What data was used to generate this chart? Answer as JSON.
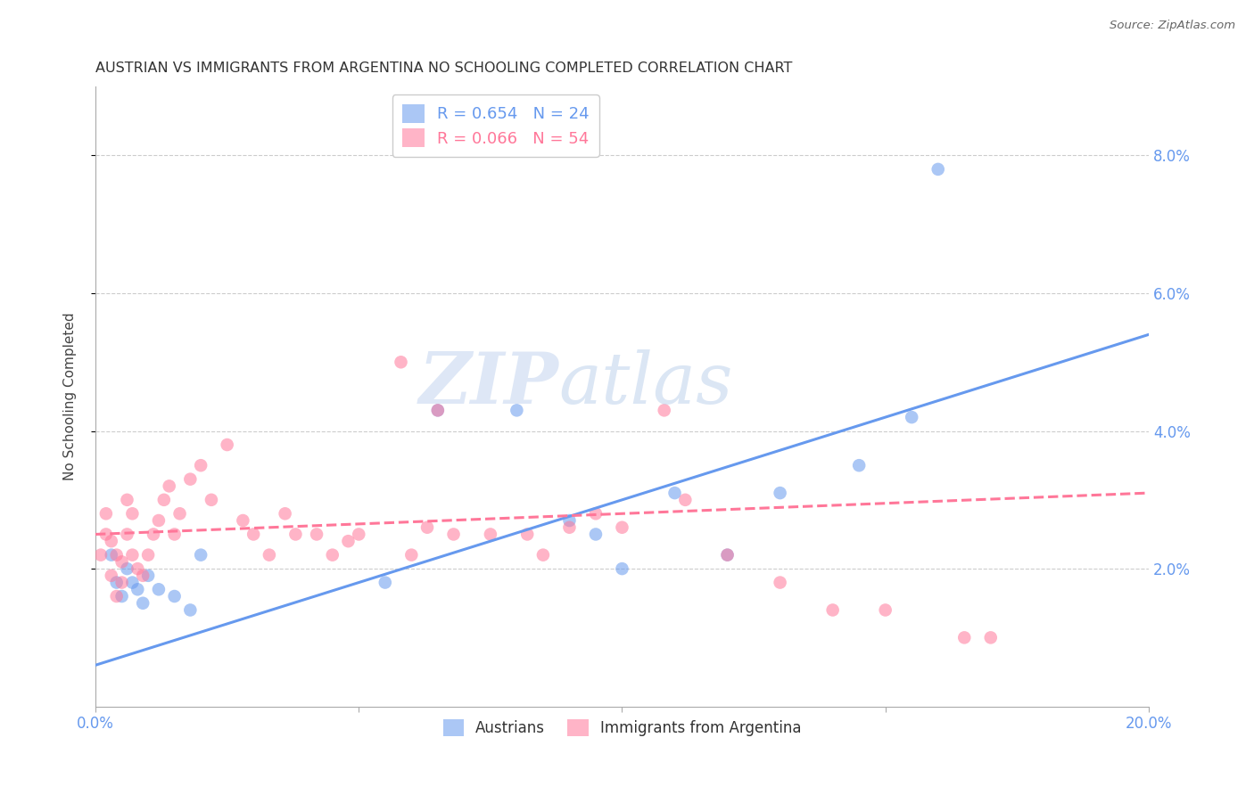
{
  "title": "AUSTRIAN VS IMMIGRANTS FROM ARGENTINA NO SCHOOLING COMPLETED CORRELATION CHART",
  "source": "Source: ZipAtlas.com",
  "ylabel": "No Schooling Completed",
  "xlim": [
    0.0,
    0.2
  ],
  "ylim": [
    0.0,
    0.09
  ],
  "xticks": [
    0.0,
    0.05,
    0.1,
    0.15,
    0.2
  ],
  "yticks": [
    0.02,
    0.04,
    0.06,
    0.08
  ],
  "xtick_labels": [
    "0.0%",
    "",
    "",
    "",
    "20.0%"
  ],
  "ytick_labels": [
    "2.0%",
    "4.0%",
    "6.0%",
    "8.0%"
  ],
  "austrians_color": "#6699ee",
  "immigrants_color": "#ff7799",
  "austrians_R": 0.654,
  "austrians_N": 24,
  "immigrants_R": 0.066,
  "immigrants_N": 54,
  "legend_entries": [
    "Austrians",
    "Immigrants from Argentina"
  ],
  "background_color": "#ffffff",
  "grid_color": "#cccccc",
  "watermark_zip": "ZIP",
  "watermark_atlas": "atlas",
  "blue_line_x0": 0.0,
  "blue_line_y0": 0.006,
  "blue_line_x1": 0.2,
  "blue_line_y1": 0.054,
  "pink_line_x0": 0.0,
  "pink_line_y0": 0.025,
  "pink_line_x1": 0.2,
  "pink_line_y1": 0.031,
  "austrians_x": [
    0.003,
    0.004,
    0.005,
    0.006,
    0.007,
    0.008,
    0.009,
    0.01,
    0.012,
    0.015,
    0.018,
    0.02,
    0.055,
    0.065,
    0.08,
    0.09,
    0.095,
    0.1,
    0.11,
    0.12,
    0.13,
    0.145,
    0.155,
    0.16
  ],
  "austrians_y": [
    0.022,
    0.018,
    0.016,
    0.02,
    0.018,
    0.017,
    0.015,
    0.019,
    0.017,
    0.016,
    0.014,
    0.022,
    0.018,
    0.043,
    0.043,
    0.027,
    0.025,
    0.02,
    0.031,
    0.022,
    0.031,
    0.035,
    0.042,
    0.078
  ],
  "immigrants_x": [
    0.001,
    0.002,
    0.002,
    0.003,
    0.003,
    0.004,
    0.004,
    0.005,
    0.005,
    0.006,
    0.006,
    0.007,
    0.007,
    0.008,
    0.009,
    0.01,
    0.011,
    0.012,
    0.013,
    0.014,
    0.015,
    0.016,
    0.018,
    0.02,
    0.022,
    0.025,
    0.028,
    0.03,
    0.033,
    0.036,
    0.038,
    0.042,
    0.045,
    0.048,
    0.05,
    0.058,
    0.06,
    0.063,
    0.065,
    0.068,
    0.075,
    0.082,
    0.085,
    0.09,
    0.095,
    0.1,
    0.108,
    0.112,
    0.12,
    0.13,
    0.14,
    0.15,
    0.165,
    0.17
  ],
  "immigrants_y": [
    0.022,
    0.025,
    0.028,
    0.019,
    0.024,
    0.016,
    0.022,
    0.018,
    0.021,
    0.025,
    0.03,
    0.022,
    0.028,
    0.02,
    0.019,
    0.022,
    0.025,
    0.027,
    0.03,
    0.032,
    0.025,
    0.028,
    0.033,
    0.035,
    0.03,
    0.038,
    0.027,
    0.025,
    0.022,
    0.028,
    0.025,
    0.025,
    0.022,
    0.024,
    0.025,
    0.05,
    0.022,
    0.026,
    0.043,
    0.025,
    0.025,
    0.025,
    0.022,
    0.026,
    0.028,
    0.026,
    0.043,
    0.03,
    0.022,
    0.018,
    0.014,
    0.014,
    0.01,
    0.01
  ]
}
